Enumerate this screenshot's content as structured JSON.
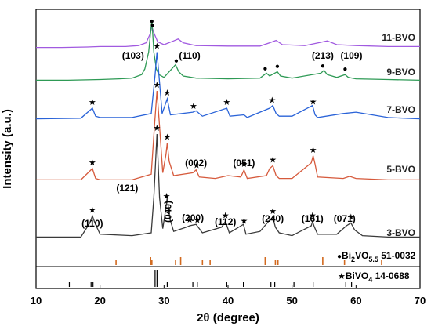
{
  "chart_data": {
    "type": "line",
    "xlabel": "2θ (degree)",
    "ylabel": "Intensity (a.u.)",
    "xlim": [
      10,
      70
    ],
    "xticks": [
      10,
      20,
      30,
      40,
      50,
      60,
      70
    ],
    "colors": {
      "11-BVO": "#a15ae0",
      "9-BVO": "#2e9a55",
      "7-BVO": "#2a63d8",
      "5-BVO": "#d65a3c",
      "3-BVO": "#3a3a3a",
      "ref_bi2vo55": "#d2691e",
      "ref_bivo4": "#000000"
    },
    "series": [
      {
        "name": "11-BVO",
        "x": [
          10,
          14,
          18,
          20,
          24,
          26,
          27.2,
          27.8,
          28.1,
          28.5,
          29,
          30,
          31.5,
          32.2,
          33,
          35,
          40,
          45,
          46.5,
          47.5,
          48.5,
          52,
          54.5,
          55.5,
          57,
          60,
          65,
          70
        ],
        "y": [
          0.2,
          0.2,
          0.25,
          0.3,
          0.3,
          0.4,
          0.7,
          1.6,
          2.4,
          1.6,
          0.8,
          0.5,
          0.9,
          1.1,
          0.7,
          0.4,
          0.35,
          0.35,
          0.7,
          0.95,
          0.5,
          0.4,
          0.75,
          0.9,
          0.5,
          0.4,
          0.3,
          0.3
        ]
      },
      {
        "name": "9-BVO",
        "x": [
          10,
          15,
          20,
          23,
          25,
          26.5,
          27,
          27.6,
          28.1,
          28.4,
          28.8,
          29.2,
          30,
          31.8,
          32.3,
          33,
          35,
          40,
          45,
          46,
          46.5,
          47.7,
          48.2,
          50,
          54.5,
          55,
          55.5,
          57,
          58.3,
          58.8,
          60,
          65,
          70
        ],
        "y": [
          0.2,
          0.2,
          0.25,
          0.3,
          0.35,
          0.6,
          1.0,
          2.2,
          4.5,
          2.2,
          1.0,
          0.6,
          0.4,
          1.3,
          0.8,
          0.5,
          0.35,
          0.3,
          0.35,
          0.7,
          0.5,
          0.8,
          0.5,
          0.35,
          0.7,
          0.9,
          0.6,
          0.4,
          0.6,
          0.4,
          0.3,
          0.25,
          0.2
        ]
      },
      {
        "name": "7-BVO",
        "x": [
          10,
          17,
          18.8,
          19.3,
          20,
          25,
          28,
          28.6,
          28.9,
          29.2,
          29.7,
          30.5,
          31,
          34.5,
          35,
          36,
          39.8,
          40.3,
          42.5,
          43,
          46.5,
          47,
          47.5,
          48,
          50,
          53.2,
          53.6,
          54,
          58,
          60,
          65,
          70
        ],
        "y": [
          0.2,
          0.25,
          1.0,
          0.4,
          0.3,
          0.3,
          0.6,
          3.5,
          5.2,
          3.5,
          0.6,
          1.7,
          0.5,
          0.7,
          0.8,
          0.4,
          1.0,
          0.4,
          0.5,
          0.3,
          1.0,
          1.2,
          0.6,
          0.4,
          0.4,
          1.2,
          0.5,
          0.3,
          0.6,
          0.7,
          0.3,
          0.2
        ]
      },
      {
        "name": "5-BVO",
        "x": [
          10,
          17,
          18.8,
          19.3,
          20,
          25,
          28,
          28.5,
          28.9,
          29.3,
          29.8,
          30.3,
          30.5,
          30.8,
          31.5,
          34.5,
          35,
          35.5,
          38,
          40,
          42,
          42.5,
          43,
          46,
          46.5,
          47,
          47.5,
          48,
          50,
          53,
          53.3,
          53.6,
          54,
          58,
          59,
          60,
          65,
          70
        ],
        "y": [
          0.2,
          0.2,
          1.0,
          0.3,
          0.2,
          0.2,
          0.6,
          4.0,
          6.5,
          4.0,
          0.7,
          2.0,
          2.8,
          1.5,
          0.5,
          0.7,
          0.9,
          0.4,
          0.3,
          0.5,
          0.4,
          0.9,
          0.3,
          0.5,
          1.0,
          1.2,
          0.5,
          0.3,
          0.3,
          1.4,
          1.9,
          1.3,
          0.4,
          0.3,
          0.45,
          0.3,
          0.2,
          0.2
        ]
      },
      {
        "name": "3-BVO",
        "x": [
          10,
          17,
          18.4,
          18.8,
          19.2,
          20,
          25,
          28,
          28.4,
          28.9,
          29.3,
          29.8,
          30.2,
          30.5,
          30.9,
          31.5,
          33.5,
          34,
          35,
          36,
          39,
          39.6,
          40.2,
          42.4,
          42.8,
          45,
          46.5,
          47,
          47.4,
          48,
          50,
          53,
          53.2,
          53.5,
          54,
          57,
          58.5,
          59.2,
          59.8,
          61,
          65,
          70
        ],
        "y": [
          0.2,
          0.2,
          1.2,
          1.7,
          1.2,
          0.4,
          0.3,
          0.5,
          3.0,
          7.5,
          3.0,
          0.8,
          2.0,
          3.0,
          1.5,
          0.6,
          0.9,
          1.0,
          1.1,
          0.5,
          0.9,
          1.3,
          0.5,
          1.1,
          0.4,
          0.6,
          1.4,
          1.6,
          0.9,
          0.5,
          0.3,
          1.0,
          1.3,
          0.9,
          0.4,
          0.4,
          1.0,
          1.2,
          0.7,
          0.3,
          0.2,
          0.2
        ]
      }
    ],
    "series_labels": [
      "11-BVO",
      "9-BVO",
      "7-BVO",
      "5-BVO",
      "3-BVO"
    ],
    "reference_patterns": [
      {
        "label_sub_base": "Bi",
        "label_sub1": "2",
        "label_mid": "VO",
        "label_sub2": "5.5",
        "label_suffix": " 51-0032",
        "marker": "●",
        "lines": [
          22.5,
          27.9,
          28.1,
          31.8,
          32.6,
          36.0,
          37.2,
          45.8,
          47.4,
          47.8,
          54.8,
          58.2,
          64.0
        ]
      },
      {
        "label_text": "BiVO",
        "label_sub": "4",
        "label_suffix": " 14-0688",
        "marker": "★",
        "lines": [
          15.2,
          18.6,
          18.9,
          28.6,
          28.9,
          30.5,
          34.5,
          35.2,
          39.8,
          42.4,
          46.7,
          47.3,
          50.3,
          53.3,
          58.4,
          59.3
        ]
      }
    ],
    "annotations_9": [
      {
        "text": "(103)",
        "x": 28.1
      },
      {
        "text": "(110)",
        "x": 31.8
      },
      {
        "text": "(213)",
        "x": 54.8
      },
      {
        "text": "(109)",
        "x": 58.3
      }
    ],
    "annotations_5": [
      {
        "text": "(002)",
        "x": 35.0
      },
      {
        "text": "(051)",
        "x": 42.5
      }
    ],
    "annotations_3": [
      {
        "text": "(110)",
        "x": 18.8
      },
      {
        "text": "(121)",
        "x": 28.9
      },
      {
        "text": "(040)",
        "x": 30.5
      },
      {
        "text": "(200)",
        "x": 34.5
      },
      {
        "text": "(112)",
        "x": 39.6
      },
      {
        "text": "(240)",
        "x": 47.0
      },
      {
        "text": "(161)",
        "x": 53.2
      },
      {
        "text": "(071)",
        "x": 59.2
      }
    ],
    "markers": {
      "11-BVO": [
        {
          "symbol": "●",
          "x": 28.1
        }
      ],
      "9-BVO": [
        {
          "symbol": "●",
          "x": 28.2
        },
        {
          "symbol": "●",
          "x": 31.9
        },
        {
          "symbol": "●",
          "x": 45.8
        },
        {
          "symbol": "●",
          "x": 47.7
        },
        {
          "symbol": "●",
          "x": 54.8
        },
        {
          "symbol": "●",
          "x": 58.3
        }
      ],
      "7-BVO": [
        {
          "symbol": "★",
          "x": 18.8
        },
        {
          "symbol": "★",
          "x": 28.9
        },
        {
          "symbol": "★",
          "x": 30.5
        },
        {
          "symbol": "★",
          "x": 34.6
        },
        {
          "symbol": "★",
          "x": 39.8
        },
        {
          "symbol": "★",
          "x": 46.9
        },
        {
          "symbol": "★",
          "x": 53.3
        }
      ],
      "5-BVO": [
        {
          "symbol": "★",
          "x": 18.8
        },
        {
          "symbol": "★",
          "x": 28.9
        },
        {
          "symbol": "★",
          "x": 30.5
        },
        {
          "symbol": "★",
          "x": 35.1
        },
        {
          "symbol": "★",
          "x": 42.5
        },
        {
          "symbol": "★",
          "x": 47.0
        },
        {
          "symbol": "★",
          "x": 53.3
        }
      ],
      "3-BVO": [
        {
          "symbol": "★",
          "x": 18.8
        },
        {
          "symbol": "★",
          "x": 28.9
        },
        {
          "symbol": "★",
          "x": 30.4
        },
        {
          "symbol": "★",
          "x": 34.0
        },
        {
          "symbol": "★",
          "x": 35.2
        },
        {
          "symbol": "★",
          "x": 39.6
        },
        {
          "symbol": "★",
          "x": 42.5
        },
        {
          "symbol": "★",
          "x": 47.0
        },
        {
          "symbol": "★",
          "x": 53.2
        },
        {
          "symbol": "★",
          "x": 59.2
        }
      ]
    }
  }
}
